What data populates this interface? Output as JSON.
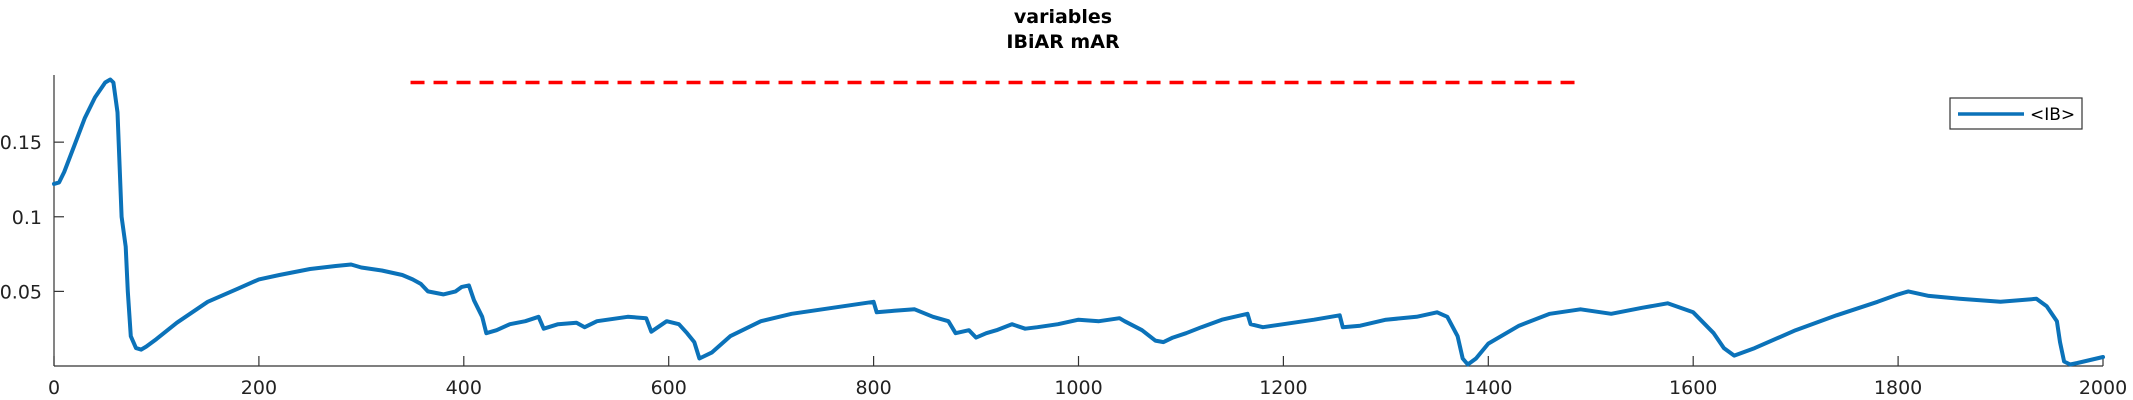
{
  "chart_data": {
    "type": "line",
    "title": "variables",
    "subtitle": "IBiAR mAR",
    "xlabel": "",
    "ylabel": "",
    "xlim": [
      0,
      2000
    ],
    "ylim": [
      0,
      0.195
    ],
    "x_ticks": [
      0,
      200,
      400,
      600,
      800,
      1000,
      1200,
      1400,
      1600,
      1800,
      2000
    ],
    "x_tick_labels": [
      "0",
      "200",
      "400",
      "600",
      "800",
      "1000",
      "1200",
      "1400",
      "1600",
      "1800",
      "2000"
    ],
    "y_ticks": [
      0.05,
      0.1,
      0.15
    ],
    "y_tick_labels": [
      "0.05",
      "0.1",
      "0.15"
    ],
    "grid": false,
    "legend": {
      "position": "top-right",
      "entries": [
        "<IB>"
      ]
    },
    "reference_line": {
      "style": "dashed",
      "color": "#ff0000",
      "y": 0.19,
      "x_start": 348,
      "x_end": 1492
    },
    "series": [
      {
        "name": "<IB>",
        "color": "#0b72b9",
        "x": [
          0,
          5,
          10,
          20,
          30,
          40,
          50,
          55,
          58,
          62,
          66,
          70,
          72,
          75,
          80,
          85,
          90,
          100,
          120,
          150,
          180,
          200,
          220,
          250,
          275,
          290,
          300,
          320,
          340,
          350,
          358,
          365,
          380,
          392,
          398,
          405,
          410,
          418,
          422,
          432,
          445,
          460,
          473,
          478,
          492,
          510,
          518,
          530,
          560,
          578,
          583,
          598,
          610,
          618,
          625,
          630,
          642,
          660,
          690,
          720,
          760,
          800,
          803,
          820,
          840,
          858,
          873,
          880,
          893,
          900,
          910,
          920,
          935,
          948,
          960,
          980,
          1000,
          1020,
          1040,
          1045,
          1062,
          1075,
          1083,
          1092,
          1105,
          1120,
          1140,
          1165,
          1168,
          1180,
          1200,
          1230,
          1255,
          1258,
          1275,
          1300,
          1330,
          1350,
          1360,
          1370,
          1375,
          1380,
          1388,
          1400,
          1430,
          1460,
          1490,
          1520,
          1550,
          1575,
          1600,
          1620,
          1630,
          1640,
          1660,
          1700,
          1740,
          1780,
          1800,
          1810,
          1830,
          1860,
          1900,
          1935,
          1945,
          1955,
          1958,
          1962,
          1968,
          1975,
          2000
        ],
        "y": [
          0.122,
          0.123,
          0.13,
          0.148,
          0.166,
          0.18,
          0.19,
          0.192,
          0.19,
          0.17,
          0.1,
          0.08,
          0.05,
          0.02,
          0.012,
          0.011,
          0.013,
          0.018,
          0.029,
          0.043,
          0.052,
          0.058,
          0.061,
          0.065,
          0.067,
          0.068,
          0.066,
          0.064,
          0.061,
          0.058,
          0.055,
          0.05,
          0.048,
          0.05,
          0.053,
          0.054,
          0.044,
          0.033,
          0.022,
          0.024,
          0.028,
          0.03,
          0.033,
          0.025,
          0.028,
          0.029,
          0.026,
          0.03,
          0.033,
          0.032,
          0.023,
          0.03,
          0.028,
          0.022,
          0.016,
          0.005,
          0.009,
          0.02,
          0.03,
          0.035,
          0.039,
          0.043,
          0.036,
          0.037,
          0.038,
          0.033,
          0.03,
          0.022,
          0.024,
          0.019,
          0.022,
          0.024,
          0.028,
          0.025,
          0.026,
          0.028,
          0.031,
          0.03,
          0.032,
          0.03,
          0.024,
          0.017,
          0.016,
          0.019,
          0.022,
          0.026,
          0.031,
          0.035,
          0.028,
          0.026,
          0.028,
          0.031,
          0.034,
          0.026,
          0.027,
          0.031,
          0.033,
          0.036,
          0.033,
          0.02,
          0.005,
          0.001,
          0.005,
          0.015,
          0.027,
          0.035,
          0.038,
          0.035,
          0.039,
          0.042,
          0.036,
          0.022,
          0.012,
          0.007,
          0.012,
          0.024,
          0.034,
          0.043,
          0.048,
          0.05,
          0.047,
          0.045,
          0.043,
          0.045,
          0.04,
          0.03,
          0.016,
          0.003,
          0.001,
          0.002,
          0.006
        ]
      }
    ]
  }
}
